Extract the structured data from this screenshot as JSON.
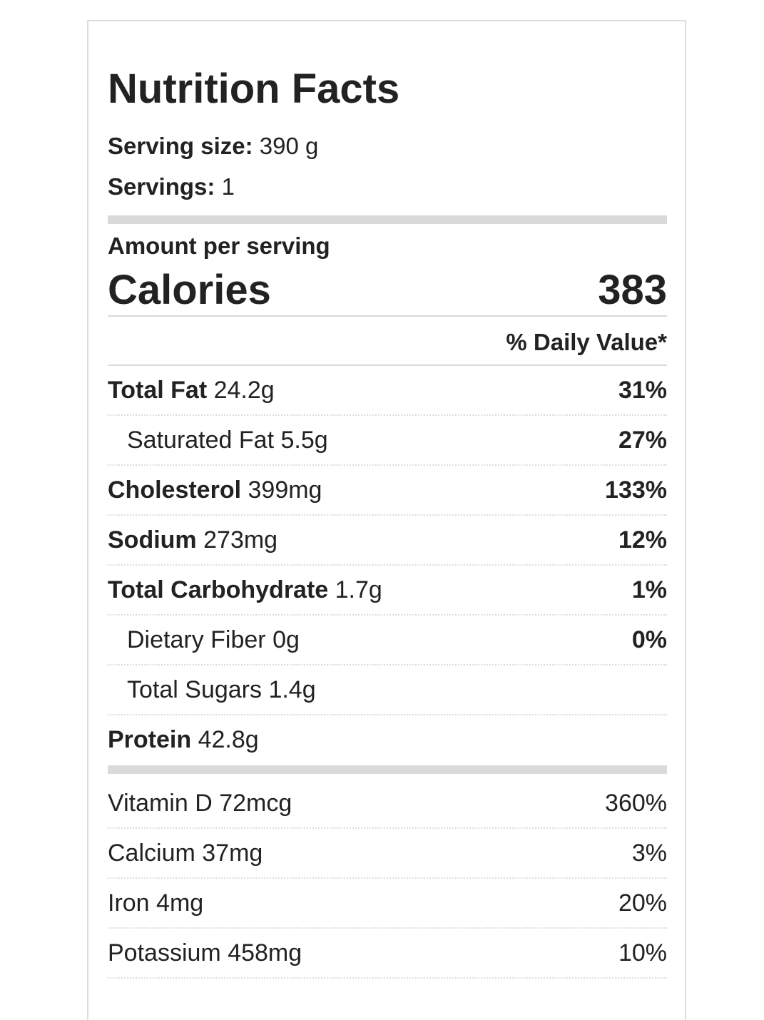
{
  "title": "Nutrition Facts",
  "serving_size": {
    "label": "Serving size:",
    "value": "390 g"
  },
  "servings": {
    "label": "Servings:",
    "value": "1"
  },
  "amount_per_serving": "Amount per serving",
  "calories": {
    "label": "Calories",
    "value": "383"
  },
  "daily_value_header": "% Daily Value*",
  "nutrients": [
    {
      "name": "Total Fat",
      "amount": "24.2g",
      "dv": "31%"
    },
    {
      "name": "Saturated Fat",
      "amount": "5.5g",
      "dv": "27%"
    },
    {
      "name": "Cholesterol",
      "amount": "399mg",
      "dv": "133%"
    },
    {
      "name": "Sodium",
      "amount": "273mg",
      "dv": "12%"
    },
    {
      "name": "Total Carbohydrate",
      "amount": "1.7g",
      "dv": "1%"
    },
    {
      "name": "Dietary Fiber",
      "amount": "0g",
      "dv": "0%"
    },
    {
      "name": "Total Sugars",
      "amount": "1.4g",
      "dv": ""
    },
    {
      "name": "Protein",
      "amount": "42.8g",
      "dv": ""
    }
  ],
  "vitamins": [
    {
      "name": "Vitamin D",
      "amount": "72mcg",
      "dv": "360%"
    },
    {
      "name": "Calcium",
      "amount": "37mg",
      "dv": "3%"
    },
    {
      "name": "Iron",
      "amount": "4mg",
      "dv": "20%"
    },
    {
      "name": "Potassium",
      "amount": "458mg",
      "dv": "10%"
    }
  ]
}
